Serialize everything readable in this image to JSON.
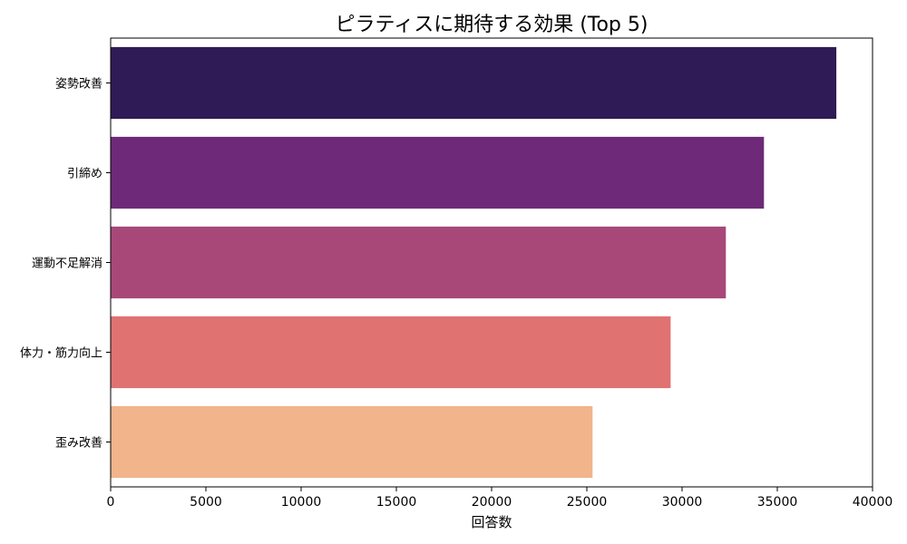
{
  "chart_data": {
    "type": "bar",
    "orientation": "horizontal",
    "title": "ピラティスに期待する効果 (Top 5)",
    "xlabel": "回答数",
    "ylabel": "",
    "xlim": [
      0,
      40000
    ],
    "xticks": [
      "0",
      "5000",
      "10000",
      "15000",
      "20000",
      "25000",
      "30000",
      "35000",
      "40000"
    ],
    "grid": false,
    "categories": [
      "姿勢改善",
      "引締め",
      "運動不足解消",
      "体力・筋力向上",
      "歪み改善"
    ],
    "values": [
      38100,
      34300,
      32300,
      29400,
      25300
    ],
    "colors": [
      "#2f1b55",
      "#6e2a78",
      "#a84878",
      "#e07272",
      "#f1b48b"
    ]
  }
}
